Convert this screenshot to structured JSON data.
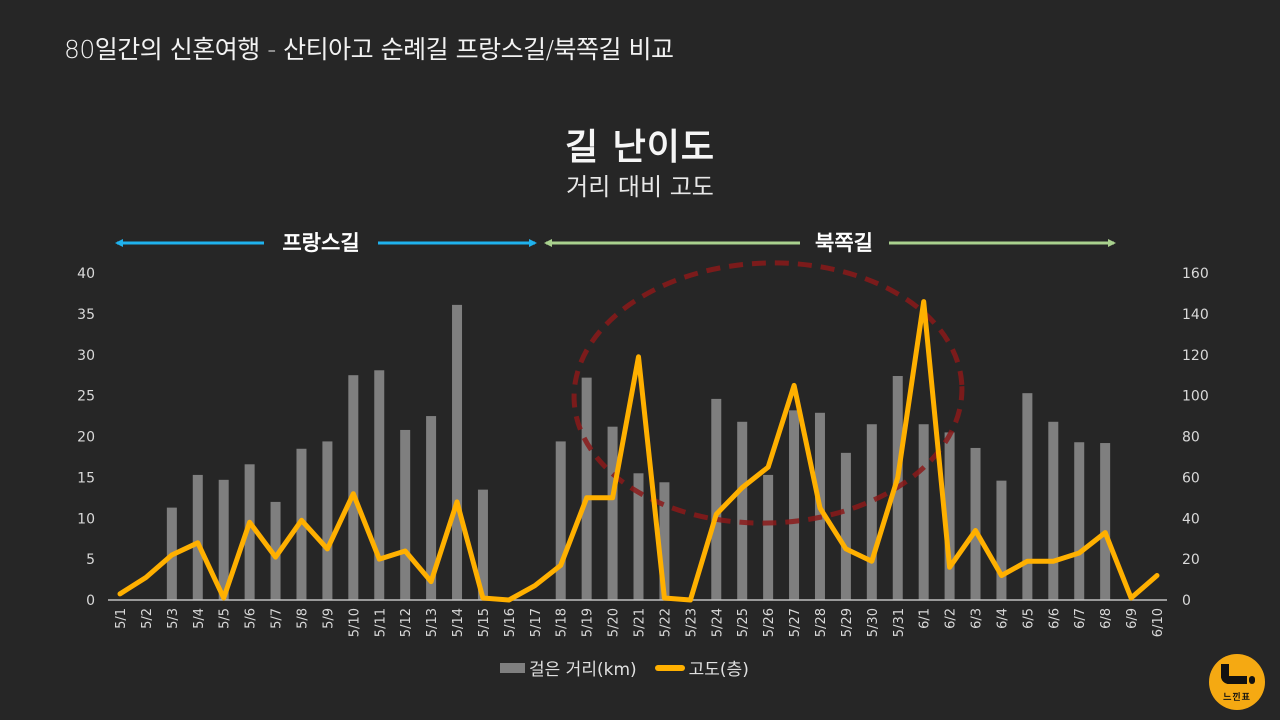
{
  "header": {
    "title": "80일간의 신혼여행 - 산티아고 순례길 프랑스길/북쪽길 비교"
  },
  "chart": {
    "title": "길 난이도",
    "subtitle": "거리 대비 고도"
  },
  "sections": [
    {
      "label": "프랑스길",
      "color": "#1fb2ee",
      "from": "5/1",
      "to": "5/17"
    },
    {
      "label": "북쪽길",
      "color": "#a9d18e",
      "from": "5/18",
      "to": "6/10"
    }
  ],
  "legend": {
    "bar_label": "걸은 거리(km)",
    "line_label": "고도(층)"
  },
  "logo": {
    "text": "느낀표"
  },
  "colors": {
    "background": "#262626",
    "bar": "#7f7f7f",
    "line": "#ffb000",
    "highlight_ellipse": "#8b1a1a",
    "france_arrow": "#1fb2ee",
    "north_arrow": "#a9d18e"
  },
  "chart_data": {
    "type": "bar",
    "title": "길 난이도",
    "subtitle": "거리 대비 고도",
    "xlabel": "",
    "ylabel": "걸은 거리(km)",
    "y2label": "고도(층)",
    "ylim": [
      0,
      40
    ],
    "y2lim": [
      0,
      160
    ],
    "yticks": [
      0,
      5,
      10,
      15,
      20,
      25,
      30,
      35,
      40
    ],
    "y2ticks": [
      0,
      20,
      40,
      60,
      80,
      100,
      120,
      140,
      160
    ],
    "grid": false,
    "legend_position": "bottom",
    "categories": [
      "5/1",
      "5/2",
      "5/3",
      "5/4",
      "5/5",
      "5/6",
      "5/7",
      "5/8",
      "5/9",
      "5/10",
      "5/11",
      "5/12",
      "5/13",
      "5/14",
      "5/15",
      "5/16",
      "5/17",
      "5/18",
      "5/19",
      "5/20",
      "5/21",
      "5/22",
      "5/23",
      "5/24",
      "5/25",
      "5/26",
      "5/27",
      "5/28",
      "5/29",
      "5/30",
      "5/31",
      "6/1",
      "6/2",
      "6/3",
      "6/4",
      "6/5",
      "6/6",
      "6/7",
      "6/8",
      "6/9",
      "6/10"
    ],
    "series": [
      {
        "name": "걸은 거리(km)",
        "type": "bar",
        "axis": "left",
        "values": [
          0,
          0,
          11.3,
          15.3,
          14.7,
          16.6,
          12.0,
          18.5,
          19.4,
          27.5,
          28.1,
          20.8,
          22.5,
          36.1,
          13.5,
          0,
          0,
          19.4,
          27.2,
          21.2,
          15.5,
          14.4,
          0,
          24.6,
          21.8,
          15.3,
          23.2,
          22.9,
          18.0,
          21.5,
          27.4,
          21.5,
          20.5,
          18.6,
          14.6,
          25.3,
          21.8,
          19.3,
          19.2,
          0,
          0
        ]
      },
      {
        "name": "고도(층)",
        "type": "line",
        "axis": "right",
        "values": [
          3,
          11,
          22,
          28,
          1,
          38,
          21,
          39,
          25,
          52,
          20,
          24,
          9,
          48,
          1,
          0,
          7,
          17,
          50,
          50,
          119,
          1,
          0,
          42,
          55,
          65,
          105,
          45,
          25,
          19,
          60,
          146,
          16,
          34,
          12,
          19,
          19,
          23,
          33,
          1,
          12
        ]
      }
    ],
    "annotations": [
      {
        "type": "dashed-ellipse",
        "note": "highlight of 북쪽길 elevation peaks (5/19–6/1)"
      },
      {
        "type": "range-arrow",
        "label": "프랑스길",
        "range": [
          "5/1",
          "5/17"
        ]
      },
      {
        "type": "range-arrow",
        "label": "북쪽길",
        "range": [
          "5/18",
          "6/10"
        ]
      }
    ]
  }
}
